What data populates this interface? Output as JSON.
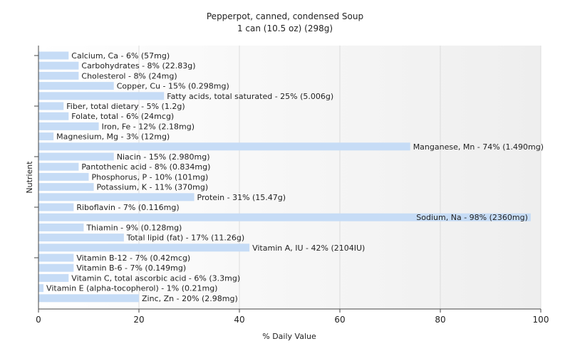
{
  "chart_data": {
    "type": "bar",
    "orientation": "horizontal",
    "title": "Pepperpot, canned, condensed Soup",
    "subtitle": "1 can (10.5 oz) (298g)",
    "xlabel": "% Daily Value",
    "ylabel": "Nutrient",
    "xlim": [
      0,
      100
    ],
    "xticks": [
      "0",
      "20",
      "40",
      "60",
      "80",
      "100"
    ],
    "grid": true,
    "bar_color": "#c6dcf6",
    "categories": [
      "Calcium, Ca",
      "Carbohydrates",
      "Cholesterol",
      "Copper, Cu",
      "Fatty acids, total saturated",
      "Fiber, total dietary",
      "Folate, total",
      "Iron, Fe",
      "Magnesium, Mg",
      "Manganese, Mn",
      "Niacin",
      "Pantothenic acid",
      "Phosphorus, P",
      "Potassium, K",
      "Protein",
      "Riboflavin",
      "Sodium, Na",
      "Thiamin",
      "Total lipid (fat)",
      "Vitamin A, IU",
      "Vitamin B-12",
      "Vitamin B-6",
      "Vitamin C, total ascorbic acid",
      "Vitamin E (alpha-tocopherol)",
      "Zinc, Zn"
    ],
    "values": [
      6,
      8,
      8,
      15,
      25,
      5,
      6,
      12,
      3,
      74,
      15,
      8,
      10,
      11,
      31,
      7,
      98,
      9,
      17,
      42,
      7,
      7,
      6,
      1,
      20
    ],
    "labels": [
      "Calcium, Ca - 6% (57mg)",
      "Carbohydrates - 8% (22.83g)",
      "Cholesterol - 8% (24mg)",
      "Copper, Cu - 15% (0.298mg)",
      "Fatty acids, total saturated - 25% (5.006g)",
      "Fiber, total dietary - 5% (1.2g)",
      "Folate, total - 6% (24mcg)",
      "Iron, Fe - 12% (2.18mg)",
      "Magnesium, Mg - 3% (12mg)",
      "Manganese, Mn - 74% (1.490mg)",
      "Niacin - 15% (2.980mg)",
      "Pantothenic acid - 8% (0.834mg)",
      "Phosphorus, P - 10% (101mg)",
      "Potassium, K - 11% (370mg)",
      "Protein - 31% (15.47g)",
      "Riboflavin - 7% (0.116mg)",
      "Sodium, Na - 98% (2360mg)",
      "Thiamin - 9% (0.128mg)",
      "Total lipid (fat) - 17% (11.26g)",
      "Vitamin A, IU - 42% (2104IU)",
      "Vitamin B-12 - 7% (0.42mcg)",
      "Vitamin B-6 - 7% (0.149mg)",
      "Vitamin C, total ascorbic acid - 6% (3.3mg)",
      "Vitamin E (alpha-tocopherol) - 1% (0.21mg)",
      "Zinc, Zn - 20% (2.98mg)"
    ]
  }
}
